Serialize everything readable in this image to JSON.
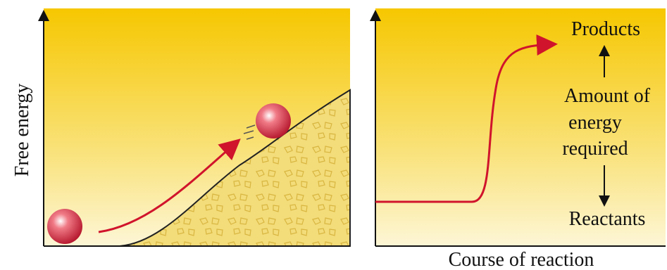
{
  "labels": {
    "y_axis": "Free energy",
    "products": "Products",
    "energy_required": [
      "Amount of",
      "energy",
      "required"
    ],
    "reactants": "Reactants",
    "x_axis": "Course of reaction"
  }
}
